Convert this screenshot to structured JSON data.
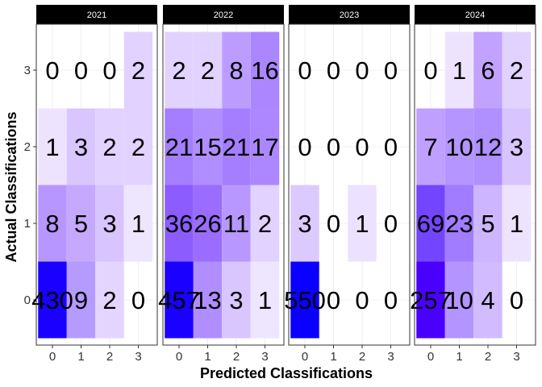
{
  "chart_data": {
    "type": "heatmap",
    "xlabel": "Predicted Classifications",
    "ylabel": "Actual Classifications",
    "x_categories": [
      "0",
      "1",
      "2",
      "3"
    ],
    "y_categories": [
      "0",
      "1",
      "2",
      "3"
    ],
    "color_scale": {
      "low": "#ffffff",
      "high": "#0000ff"
    },
    "panels": [
      {
        "name": "2021",
        "cells": [
          {
            "actual": 0,
            "predicted": 0,
            "count": 430,
            "fill": "#1a00ff"
          },
          {
            "actual": 0,
            "predicted": 1,
            "count": 9,
            "fill": "#b69bff"
          },
          {
            "actual": 0,
            "predicted": 2,
            "count": 2,
            "fill": "#e3d5ff"
          },
          {
            "actual": 0,
            "predicted": 3,
            "count": 0,
            "fill": null
          },
          {
            "actual": 1,
            "predicted": 0,
            "count": 8,
            "fill": "#b896ff"
          },
          {
            "actual": 1,
            "predicted": 1,
            "count": 5,
            "fill": "#c6a8ff"
          },
          {
            "actual": 1,
            "predicted": 2,
            "count": 3,
            "fill": "#d8c4ff"
          },
          {
            "actual": 1,
            "predicted": 3,
            "count": 1,
            "fill": "#eee5ff"
          },
          {
            "actual": 2,
            "predicted": 0,
            "count": 1,
            "fill": "#ede3ff"
          },
          {
            "actual": 2,
            "predicted": 1,
            "count": 3,
            "fill": "#d9c6ff"
          },
          {
            "actual": 2,
            "predicted": 2,
            "count": 2,
            "fill": "#e1d2ff"
          },
          {
            "actual": 2,
            "predicted": 3,
            "count": 2,
            "fill": "#e1d2ff"
          },
          {
            "actual": 3,
            "predicted": 0,
            "count": 0,
            "fill": null
          },
          {
            "actual": 3,
            "predicted": 1,
            "count": 0,
            "fill": null
          },
          {
            "actual": 3,
            "predicted": 2,
            "count": 0,
            "fill": null
          },
          {
            "actual": 3,
            "predicted": 3,
            "count": 2,
            "fill": "#e1d2ff"
          }
        ]
      },
      {
        "name": "2022",
        "cells": [
          {
            "actual": 0,
            "predicted": 0,
            "count": 457,
            "fill": "#1a00ff"
          },
          {
            "actual": 0,
            "predicted": 1,
            "count": 13,
            "fill": "#b18eff"
          },
          {
            "actual": 0,
            "predicted": 2,
            "count": 3,
            "fill": "#d9c6ff"
          },
          {
            "actual": 0,
            "predicted": 3,
            "count": 1,
            "fill": "#eee5ff"
          },
          {
            "actual": 1,
            "predicted": 0,
            "count": 36,
            "fill": "#8c5cff"
          },
          {
            "actual": 1,
            "predicted": 1,
            "count": 26,
            "fill": "#9a6dff"
          },
          {
            "actual": 1,
            "predicted": 2,
            "count": 11,
            "fill": "#b898ff"
          },
          {
            "actual": 1,
            "predicted": 3,
            "count": 2,
            "fill": "#e1d2ff"
          },
          {
            "actual": 2,
            "predicted": 0,
            "count": 21,
            "fill": "#a47eff"
          },
          {
            "actual": 2,
            "predicted": 1,
            "count": 15,
            "fill": "#b08eff"
          },
          {
            "actual": 2,
            "predicted": 2,
            "count": 21,
            "fill": "#a47eff"
          },
          {
            "actual": 2,
            "predicted": 3,
            "count": 17,
            "fill": "#ac87ff"
          },
          {
            "actual": 3,
            "predicted": 0,
            "count": 2,
            "fill": "#e1d2ff"
          },
          {
            "actual": 3,
            "predicted": 1,
            "count": 2,
            "fill": "#e1d2ff"
          },
          {
            "actual": 3,
            "predicted": 2,
            "count": 8,
            "fill": "#bc9dff"
          },
          {
            "actual": 3,
            "predicted": 3,
            "count": 16,
            "fill": "#ab86ff"
          }
        ]
      },
      {
        "name": "2023",
        "cells": [
          {
            "actual": 0,
            "predicted": 0,
            "count": 550,
            "fill": "#0a00ff"
          },
          {
            "actual": 0,
            "predicted": 1,
            "count": 0,
            "fill": null
          },
          {
            "actual": 0,
            "predicted": 2,
            "count": 0,
            "fill": null
          },
          {
            "actual": 0,
            "predicted": 3,
            "count": 0,
            "fill": null
          },
          {
            "actual": 1,
            "predicted": 0,
            "count": 3,
            "fill": "#dccaff"
          },
          {
            "actual": 1,
            "predicted": 1,
            "count": 0,
            "fill": null
          },
          {
            "actual": 1,
            "predicted": 2,
            "count": 1,
            "fill": "#ece2ff"
          },
          {
            "actual": 1,
            "predicted": 3,
            "count": 0,
            "fill": null
          },
          {
            "actual": 2,
            "predicted": 0,
            "count": 0,
            "fill": null
          },
          {
            "actual": 2,
            "predicted": 1,
            "count": 0,
            "fill": null
          },
          {
            "actual": 2,
            "predicted": 2,
            "count": 0,
            "fill": null
          },
          {
            "actual": 2,
            "predicted": 3,
            "count": 0,
            "fill": null
          },
          {
            "actual": 3,
            "predicted": 0,
            "count": 0,
            "fill": null
          },
          {
            "actual": 3,
            "predicted": 1,
            "count": 0,
            "fill": null
          },
          {
            "actual": 3,
            "predicted": 2,
            "count": 0,
            "fill": null
          },
          {
            "actual": 3,
            "predicted": 3,
            "count": 0,
            "fill": null
          }
        ]
      },
      {
        "name": "2024",
        "cells": [
          {
            "actual": 0,
            "predicted": 0,
            "count": 257,
            "fill": "#4a00ff"
          },
          {
            "actual": 0,
            "predicted": 1,
            "count": 10,
            "fill": "#b495ff"
          },
          {
            "actual": 0,
            "predicted": 2,
            "count": 4,
            "fill": "#d2bcff"
          },
          {
            "actual": 0,
            "predicted": 3,
            "count": 0,
            "fill": null
          },
          {
            "actual": 1,
            "predicted": 0,
            "count": 69,
            "fill": "#7445ff"
          },
          {
            "actual": 1,
            "predicted": 1,
            "count": 23,
            "fill": "#a27cff"
          },
          {
            "actual": 1,
            "predicted": 2,
            "count": 5,
            "fill": "#cdb5ff"
          },
          {
            "actual": 1,
            "predicted": 3,
            "count": 1,
            "fill": "#ede3ff"
          },
          {
            "actual": 2,
            "predicted": 0,
            "count": 7,
            "fill": "#bf9fff"
          },
          {
            "actual": 2,
            "predicted": 1,
            "count": 10,
            "fill": "#b595ff"
          },
          {
            "actual": 2,
            "predicted": 2,
            "count": 12,
            "fill": "#b08fff"
          },
          {
            "actual": 2,
            "predicted": 3,
            "count": 3,
            "fill": "#d8c5ff"
          },
          {
            "actual": 3,
            "predicted": 0,
            "count": 0,
            "fill": null
          },
          {
            "actual": 3,
            "predicted": 1,
            "count": 1,
            "fill": "#ede3ff"
          },
          {
            "actual": 3,
            "predicted": 2,
            "count": 6,
            "fill": "#c1a2ff"
          },
          {
            "actual": 3,
            "predicted": 3,
            "count": 2,
            "fill": "#e1d2ff"
          }
        ]
      }
    ]
  }
}
